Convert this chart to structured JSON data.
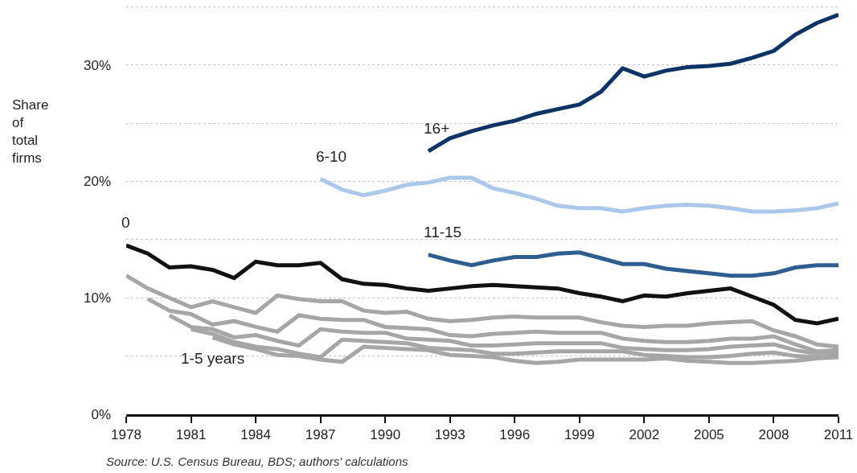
{
  "chart_data": {
    "type": "line",
    "ylabel": "Share of total firms",
    "annotations": [
      "Source: U.S. Census Bureau, BDS; authors' calculations"
    ],
    "xlim": [
      1978,
      2011
    ],
    "xticks": [
      1978,
      1981,
      1984,
      1987,
      1990,
      1993,
      1996,
      1999,
      2002,
      2005,
      2008,
      2011
    ],
    "ylim": [
      0,
      35.5
    ],
    "yticks": [
      {
        "value": 0,
        "label": "0%"
      },
      {
        "value": 5,
        "label": null
      },
      {
        "value": 10,
        "label": "10%"
      },
      {
        "value": 15,
        "label": null
      },
      {
        "value": 20,
        "label": "20%"
      },
      {
        "value": 25,
        "label": null
      },
      {
        "value": 30,
        "label": "30%"
      },
      {
        "value": 35,
        "label": null
      }
    ],
    "grid": "y",
    "marker": "none",
    "line_style": "solid",
    "series": [
      {
        "color": "#a6a6a6",
        "x": [
          1978,
          1979,
          1980,
          1981,
          1982,
          1983,
          1984,
          1985,
          1986,
          1987,
          1988,
          1989,
          1990,
          1991,
          1992,
          1993,
          1994,
          1995,
          1996,
          1997,
          1998,
          1999,
          2000,
          2001,
          2002,
          2003,
          2004,
          2005,
          2006,
          2007,
          2008,
          2009,
          2010,
          2011
        ],
        "values": [
          11.9,
          10.8,
          10.0,
          9.2,
          9.7,
          9.2,
          8.7,
          10.2,
          9.9,
          9.7,
          9.7,
          8.9,
          8.7,
          8.8,
          8.2,
          8.0,
          8.1,
          8.3,
          8.4,
          8.3,
          8.3,
          8.3,
          7.9,
          7.6,
          7.5,
          7.6,
          7.6,
          7.8,
          7.9,
          8.0,
          7.2,
          6.7,
          6.0,
          5.8
        ]
      },
      {
        "color": "#a6a6a6",
        "x": [
          1979,
          1980,
          1981,
          1982,
          1983,
          1984,
          1985,
          1986,
          1987,
          1988,
          1989,
          1990,
          1991,
          1992,
          1993,
          1994,
          1995,
          1996,
          1997,
          1998,
          1999,
          2000,
          2001,
          2002,
          2003,
          2004,
          2005,
          2006,
          2007,
          2008,
          2009,
          2010,
          2011
        ],
        "values": [
          9.9,
          8.9,
          8.6,
          7.7,
          8.0,
          7.5,
          7.1,
          8.5,
          8.2,
          8.1,
          8.1,
          7.5,
          7.4,
          7.3,
          6.8,
          6.7,
          6.9,
          7.0,
          7.1,
          7.0,
          7.0,
          7.0,
          6.5,
          6.3,
          6.2,
          6.2,
          6.3,
          6.5,
          6.5,
          6.7,
          6.0,
          5.4,
          5.5
        ]
      },
      {
        "color": "#a6a6a6",
        "x": [
          1980,
          1981,
          1982,
          1983,
          1984,
          1985,
          1986,
          1987,
          1988,
          1989,
          1990,
          1991,
          1992,
          1993,
          1994,
          1995,
          1996,
          1997,
          1998,
          1999,
          2000,
          2001,
          2002,
          2003,
          2004,
          2005,
          2006,
          2007,
          2008,
          2009,
          2010,
          2011
        ],
        "values": [
          8.5,
          7.5,
          7.3,
          6.6,
          6.8,
          6.3,
          5.9,
          7.3,
          7.1,
          7.0,
          7.0,
          6.5,
          6.4,
          6.3,
          5.9,
          5.9,
          6.0,
          6.1,
          6.1,
          6.1,
          6.1,
          5.7,
          5.6,
          5.5,
          5.5,
          5.6,
          5.8,
          5.9,
          6.0,
          5.5,
          5.2,
          5.3
        ]
      },
      {
        "color": "#a6a6a6",
        "x": [
          1981,
          1982,
          1983,
          1984,
          1985,
          1986,
          1987,
          1988,
          1989,
          1990,
          1991,
          1992,
          1993,
          1994,
          1995,
          1996,
          1997,
          1998,
          1999,
          2000,
          2001,
          2002,
          2003,
          2004,
          2005,
          2006,
          2007,
          2008,
          2009,
          2010,
          2011
        ],
        "values": [
          7.3,
          6.9,
          6.2,
          5.8,
          5.6,
          5.2,
          4.9,
          6.4,
          6.3,
          6.2,
          6.1,
          5.7,
          5.6,
          5.5,
          5.2,
          5.2,
          5.3,
          5.4,
          5.4,
          5.4,
          5.4,
          5.1,
          5.0,
          4.9,
          4.9,
          5.0,
          5.2,
          5.3,
          5.0,
          4.9,
          5.1
        ]
      },
      {
        "name": "1-5 years",
        "color": "#a6a6a6",
        "x": [
          1982,
          1983,
          1984,
          1985,
          1986,
          1987,
          1988,
          1989,
          1990,
          1991,
          1992,
          1993,
          1994,
          1995,
          1996,
          1997,
          1998,
          1999,
          2000,
          2001,
          2002,
          2003,
          2004,
          2005,
          2006,
          2007,
          2008,
          2009,
          2010,
          2011
        ],
        "values": [
          6.6,
          6.0,
          5.6,
          5.1,
          5.0,
          4.7,
          4.5,
          5.8,
          5.7,
          5.6,
          5.5,
          5.1,
          5.0,
          4.9,
          4.6,
          4.4,
          4.5,
          4.7,
          4.7,
          4.7,
          4.7,
          4.8,
          4.6,
          4.5,
          4.4,
          4.4,
          4.5,
          4.6,
          4.8,
          4.9
        ]
      },
      {
        "name": "0",
        "color": "#111111",
        "x": [
          1978,
          1979,
          1980,
          1981,
          1982,
          1983,
          1984,
          1985,
          1986,
          1987,
          1988,
          1989,
          1990,
          1991,
          1992,
          1993,
          1994,
          1995,
          1996,
          1997,
          1998,
          1999,
          2000,
          2001,
          2002,
          2003,
          2004,
          2005,
          2006,
          2007,
          2008,
          2009,
          2010,
          2011
        ],
        "values": [
          14.5,
          13.8,
          12.6,
          12.7,
          12.4,
          11.7,
          13.1,
          12.8,
          12.8,
          13.0,
          11.6,
          11.2,
          11.1,
          10.8,
          10.6,
          10.8,
          11.0,
          11.1,
          11.0,
          10.9,
          10.8,
          10.4,
          10.1,
          9.7,
          10.2,
          10.1,
          10.4,
          10.6,
          10.8,
          10.1,
          9.4,
          8.1,
          7.8,
          8.2
        ]
      },
      {
        "name": "11-15",
        "color": "#2e5d8f",
        "x": [
          1992,
          1993,
          1994,
          1995,
          1996,
          1997,
          1998,
          1999,
          2000,
          2001,
          2002,
          2003,
          2004,
          2005,
          2006,
          2007,
          2008,
          2009,
          2010,
          2011
        ],
        "values": [
          13.7,
          13.2,
          12.8,
          13.2,
          13.5,
          13.5,
          13.8,
          13.9,
          13.4,
          12.9,
          12.9,
          12.5,
          12.3,
          12.1,
          11.9,
          11.9,
          12.1,
          12.6,
          12.8,
          12.8
        ]
      },
      {
        "name": "6-10",
        "color": "#a9c8ec",
        "x": [
          1987,
          1988,
          1989,
          1990,
          1991,
          1992,
          1993,
          1994,
          1995,
          1996,
          1997,
          1998,
          1999,
          2000,
          2001,
          2002,
          2003,
          2004,
          2005,
          2006,
          2007,
          2008,
          2009,
          2010,
          2011
        ],
        "values": [
          20.2,
          19.3,
          18.8,
          19.2,
          19.7,
          19.9,
          20.3,
          20.3,
          19.4,
          19.0,
          18.5,
          17.9,
          17.7,
          17.7,
          17.4,
          17.7,
          17.9,
          18.0,
          17.9,
          17.7,
          17.4,
          17.4,
          17.5,
          17.7,
          18.1
        ]
      },
      {
        "name": "16+",
        "color": "#0d3466",
        "x": [
          1992,
          1993,
          1994,
          1995,
          1996,
          1997,
          1998,
          1999,
          2000,
          2001,
          2002,
          2003,
          2004,
          2005,
          2006,
          2007,
          2008,
          2009,
          2010,
          2011
        ],
        "values": [
          22.6,
          23.7,
          24.3,
          24.8,
          25.2,
          25.8,
          26.2,
          26.6,
          27.7,
          29.7,
          29.0,
          29.5,
          29.8,
          29.9,
          30.1,
          30.6,
          31.2,
          32.6,
          33.6,
          34.3
        ]
      }
    ]
  }
}
